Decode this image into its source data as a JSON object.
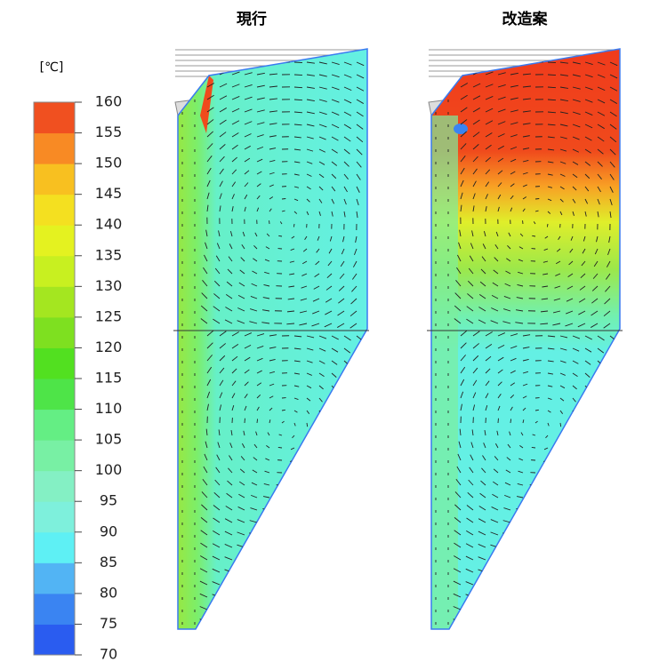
{
  "colorbar": {
    "unit": "[℃]",
    "range": [
      70,
      160
    ],
    "ticks": [
      160,
      155,
      150,
      145,
      140,
      135,
      130,
      125,
      120,
      115,
      110,
      105,
      100,
      95,
      90,
      85,
      80,
      75,
      70
    ],
    "colors": [
      "#2a5cf0",
      "#3a84f2",
      "#52b4f4",
      "#5ef0f4",
      "#7ef0dc",
      "#84f0c4",
      "#78f0a4",
      "#64ee84",
      "#4ee448",
      "#52e020",
      "#7ee020",
      "#a4e620",
      "#c8f020",
      "#e4f220",
      "#f4e020",
      "#f8c020",
      "#f88a24",
      "#f05020"
    ]
  },
  "panels": [
    {
      "title": "現行"
    },
    {
      "title": "改造案"
    }
  ]
}
